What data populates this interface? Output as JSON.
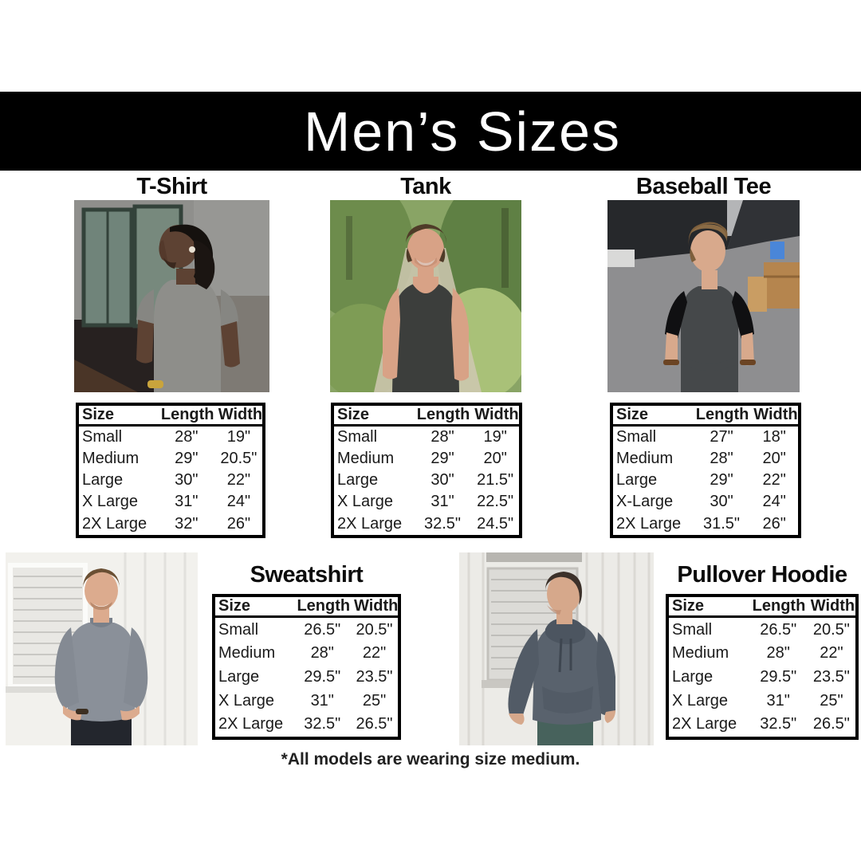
{
  "banner": {
    "title": "Men’s Sizes"
  },
  "footnote": "*All models are wearing size medium.",
  "sections": [
    {
      "name": "T-Shirt",
      "photo_alt": "man with dreadlocks wearing gray t-shirt against gray wall",
      "table": {
        "headers": [
          "Size",
          "Length",
          "Width"
        ],
        "rows": [
          [
            "Small",
            "28\"",
            "19\""
          ],
          [
            "Medium",
            "29\"",
            "20.5\""
          ],
          [
            "Large",
            "30\"",
            "22\""
          ],
          [
            "X Large",
            "31\"",
            "24\""
          ],
          [
            "2X Large",
            "32\"",
            "26\""
          ]
        ]
      }
    },
    {
      "name": "Tank",
      "photo_alt": "smiling man wearing charcoal tank top on wooded path",
      "table": {
        "headers": [
          "Size",
          "Length",
          "Width"
        ],
        "rows": [
          [
            "Small",
            "28\"",
            "19\""
          ],
          [
            "Medium",
            "29\"",
            "20\""
          ],
          [
            "Large",
            "30\"",
            "21.5\""
          ],
          [
            "X Large",
            "31\"",
            "22.5\""
          ],
          [
            "2X Large",
            "32.5\"",
            "24.5\""
          ]
        ]
      }
    },
    {
      "name": "Baseball Tee",
      "photo_alt": "man wearing charcoal baseball tee with black sleeves in parking lot",
      "table": {
        "headers": [
          "Size",
          "Length",
          "Width"
        ],
        "rows": [
          [
            "Small",
            "27\"",
            "18\""
          ],
          [
            "Medium",
            "28\"",
            "20\""
          ],
          [
            "Large",
            "29\"",
            "22\""
          ],
          [
            "X-Large",
            "30\"",
            "24\""
          ],
          [
            "2X Large",
            "31.5\"",
            "26\""
          ]
        ]
      }
    },
    {
      "name": "Sweatshirt",
      "photo_alt": "man wearing gray crewneck sweatshirt with hands in pockets",
      "table": {
        "headers": [
          "Size",
          "Length",
          "Width"
        ],
        "rows": [
          [
            "Small",
            "26.5\"",
            "20.5\""
          ],
          [
            "Medium",
            "28\"",
            "22\""
          ],
          [
            "Large",
            "29.5\"",
            "23.5\""
          ],
          [
            "X Large",
            "31\"",
            "25\""
          ],
          [
            "2X Large",
            "32.5\"",
            "26.5\""
          ]
        ]
      }
    },
    {
      "name": "Pullover Hoodie",
      "photo_alt": "man wearing slate pullover hoodie leaning on white wall",
      "table": {
        "headers": [
          "Size",
          "Length",
          "Width"
        ],
        "rows": [
          [
            "Small",
            "26.5\"",
            "20.5\""
          ],
          [
            "Medium",
            "28\"",
            "22\""
          ],
          [
            "Large",
            "29.5\"",
            "23.5\""
          ],
          [
            "X Large",
            "31\"",
            "25\""
          ],
          [
            "2X Large",
            "32.5\"",
            "26.5\""
          ]
        ]
      }
    }
  ],
  "colors": {
    "banner_bg": "#000000",
    "banner_text": "#ffffff",
    "table_border": "#000000",
    "body_text": "#1a1a1a",
    "tshirt_gray": "#8e8e8a",
    "tank_charcoal": "#3c3e3c",
    "baseball_body": "#45484a",
    "baseball_sleeve": "#101012",
    "sweatshirt_gray": "#8a9099",
    "hoodie_slate": "#59626d"
  }
}
